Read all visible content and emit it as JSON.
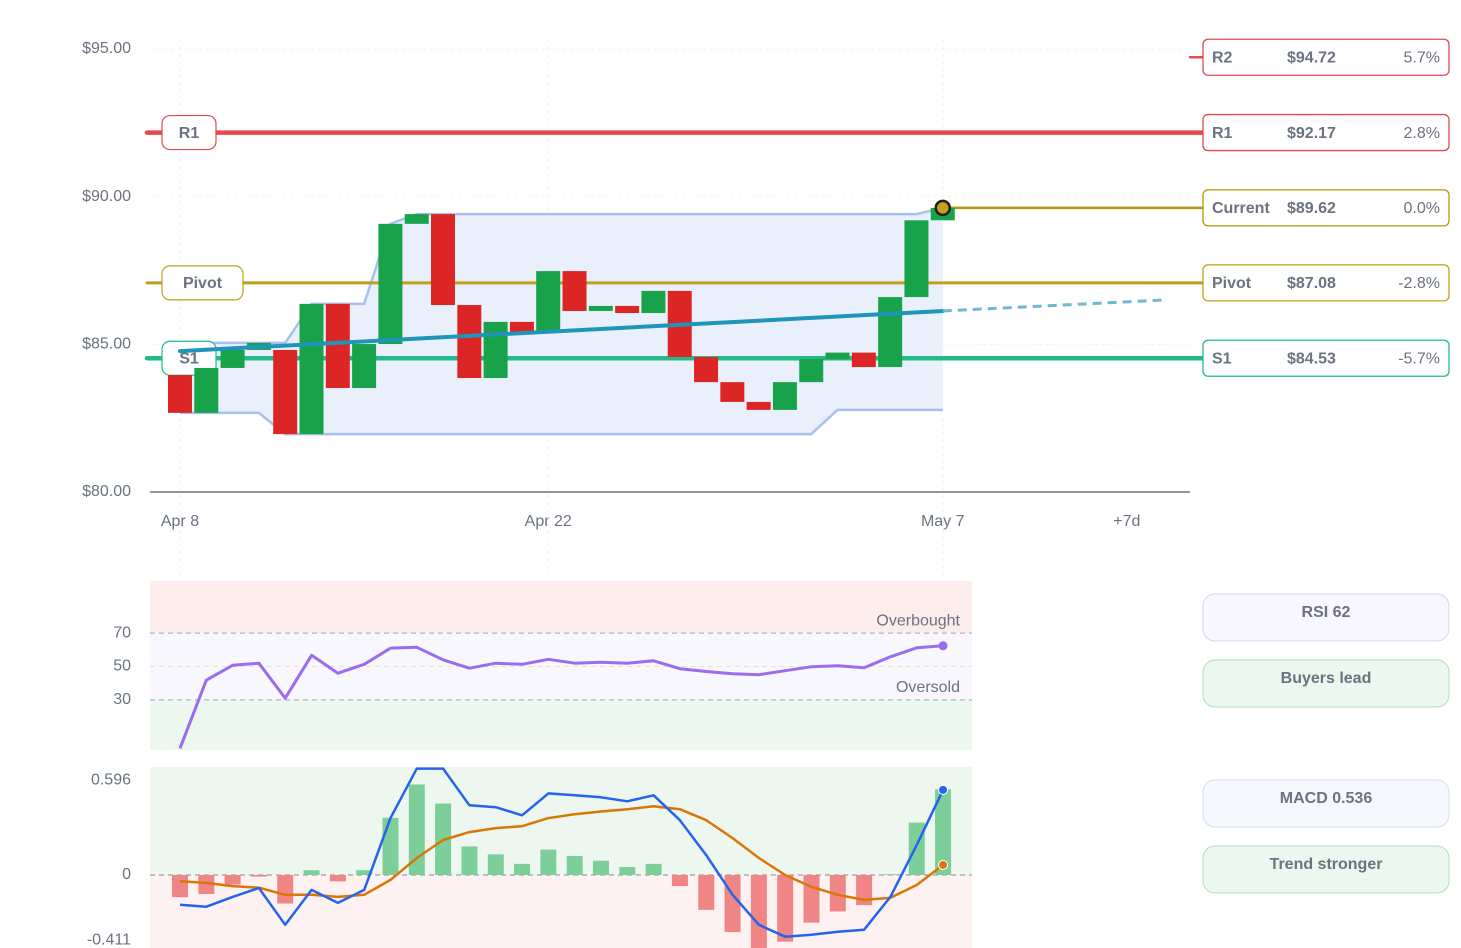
{
  "chart_data": [
    {
      "type": "candlestick",
      "x": [
        0,
        1,
        2,
        3,
        4,
        5,
        6,
        7,
        8,
        9,
        10,
        11,
        12,
        13,
        14,
        15,
        16,
        17,
        18,
        19,
        20,
        21,
        22,
        23,
        24,
        25,
        26,
        27,
        28,
        29
      ],
      "open": [
        83.96,
        82.68,
        84.2,
        84.81,
        84.81,
        81.96,
        86.37,
        83.52,
        85.01,
        89.08,
        89.41,
        86.33,
        83.86,
        85.76,
        85.42,
        87.48,
        86.13,
        86.3,
        86.06,
        86.81,
        84.57,
        83.72,
        83.05,
        82.78,
        83.72,
        84.5,
        84.72,
        84.23,
        86.6,
        89.2
      ],
      "close": [
        82.68,
        84.2,
        84.81,
        85.05,
        81.96,
        86.37,
        83.52,
        85.01,
        89.08,
        89.41,
        86.33,
        83.86,
        85.76,
        85.42,
        87.48,
        86.13,
        86.3,
        86.06,
        86.81,
        84.57,
        83.72,
        83.05,
        82.78,
        83.72,
        84.5,
        84.72,
        84.23,
        86.6,
        89.2,
        89.62
      ],
      "up_color": "#18a34a",
      "down_color": "#dc2626",
      "xlim": [
        -1.14,
        38.4
      ],
      "xticks": [
        {
          "value": 0,
          "label": "Apr 8"
        },
        {
          "value": 14,
          "label": "Apr 22"
        },
        {
          "value": 29,
          "label": "May 7"
        },
        {
          "value": 36,
          "label": "+7d"
        }
      ],
      "ylim": [
        80,
        95
      ],
      "yticks": [
        {
          "value": 80,
          "label": "$80.00"
        },
        {
          "value": 85,
          "label": "$85.00"
        },
        {
          "value": 90,
          "label": "$90.00"
        },
        {
          "value": 95,
          "label": "$95.00"
        }
      ],
      "grid": true,
      "channel": {
        "color": "#a8bff0",
        "fill": "#e9f0fc",
        "upper": [
          85.05,
          85.05,
          85.05,
          85.05,
          85.05,
          86.37,
          86.37,
          86.37,
          89.08,
          89.41,
          89.41,
          89.41,
          89.41,
          89.41,
          89.41,
          89.41,
          89.41,
          89.41,
          89.41,
          89.41,
          89.41,
          89.41,
          89.41,
          89.41,
          89.41,
          89.41,
          89.41,
          89.41,
          89.41,
          89.62
        ],
        "lower": [
          82.68,
          82.68,
          82.68,
          82.68,
          81.96,
          81.96,
          81.96,
          81.96,
          81.96,
          81.96,
          81.96,
          81.96,
          81.96,
          81.96,
          81.96,
          81.96,
          81.96,
          81.96,
          81.96,
          81.96,
          81.96,
          81.96,
          81.96,
          81.96,
          81.96,
          82.78,
          82.78,
          82.78,
          82.78,
          82.78
        ]
      },
      "trend": {
        "x": [
          0,
          29
        ],
        "values": [
          84.77,
          86.13
        ],
        "color": "#1f95b8"
      },
      "projection": {
        "x": [
          29,
          37.4
        ],
        "values": [
          86.13,
          86.5
        ],
        "color": "#6fb8d0"
      },
      "levels": [
        {
          "name": "R2",
          "value": 94.72,
          "value_label": "$94.72",
          "change": 5.7,
          "change_label": "5.7%",
          "color": "#e5484d",
          "line": "stub"
        },
        {
          "name": "R1",
          "value": 92.17,
          "value_label": "$92.17",
          "change": 2.8,
          "change_label": "2.8%",
          "color": "#e5484d",
          "line": "full"
        },
        {
          "name": "Current",
          "value": 89.62,
          "value_label": "$89.62",
          "change": 0.0,
          "change_label": "0.0%",
          "color": "#b8960c",
          "line": "from-last"
        },
        {
          "name": "Pivot",
          "value": 87.08,
          "value_label": "$87.08",
          "change": -2.8,
          "change_label": "-2.8%",
          "color": "#c0a01a",
          "line": "full"
        },
        {
          "name": "S1",
          "value": 84.53,
          "value_label": "$84.53",
          "change": -5.7,
          "change_label": "-5.7%",
          "color": "#22bb85",
          "line": "full"
        }
      ]
    },
    {
      "type": "line",
      "x": [
        0,
        1,
        2,
        3,
        4,
        5,
        6,
        7,
        8,
        9,
        10,
        11,
        12,
        13,
        14,
        15,
        16,
        17,
        18,
        19,
        20,
        21,
        22,
        23,
        24,
        25,
        26,
        27,
        28,
        29
      ],
      "values": [
        1,
        41.8,
        50.7,
        52,
        31,
        56.7,
        46,
        51.3,
        61,
        61.5,
        54,
        49,
        52,
        51.3,
        54.3,
        52,
        52.5,
        52,
        53.4,
        48.7,
        47,
        45.7,
        45.1,
        47.5,
        49.9,
        50.4,
        49.3,
        55.8,
        61.2,
        62.4
      ],
      "color": "#9b6cf0",
      "xlim": [
        -1.14,
        30.1
      ],
      "ylim": [
        0,
        100
      ],
      "yticks": [
        30,
        50,
        70
      ],
      "annotations": [
        "Oversold",
        "Overbought"
      ],
      "badge": "RSI 62",
      "note": "Buyers lead"
    },
    {
      "type": "macd",
      "x": [
        0,
        1,
        2,
        3,
        4,
        5,
        6,
        7,
        8,
        9,
        10,
        11,
        12,
        13,
        14,
        15,
        16,
        17,
        18,
        19,
        20,
        21,
        22,
        23,
        24,
        25,
        26,
        27,
        28,
        29
      ],
      "series": [
        {
          "values": [
            -0.188,
            -0.2,
            -0.138,
            -0.082,
            -0.314,
            -0.094,
            -0.176,
            -0.094,
            0.358,
            0.67,
            0.67,
            0.439,
            0.427,
            0.376,
            0.514,
            0.502,
            0.489,
            0.464,
            0.502,
            0.345,
            0.125,
            -0.125,
            -0.314,
            -0.389,
            -0.376,
            -0.358,
            -0.345,
            -0.138,
            0.188,
            0.536
          ],
          "color": "#2563eb"
        },
        {
          "values": [
            -0.04,
            -0.05,
            -0.07,
            -0.08,
            -0.125,
            -0.125,
            -0.138,
            -0.125,
            -0.031,
            0.107,
            0.22,
            0.27,
            0.295,
            0.307,
            0.358,
            0.383,
            0.4,
            0.414,
            0.433,
            0.414,
            0.345,
            0.232,
            0.107,
            0,
            -0.075,
            -0.125,
            -0.157,
            -0.144,
            -0.063,
            0.063
          ],
          "color": "#d97706"
        }
      ],
      "histogram": [
        -0.14,
        -0.12,
        -0.06,
        -0.01,
        -0.18,
        0.03,
        -0.04,
        0.03,
        0.36,
        0.57,
        0.45,
        0.18,
        0.13,
        0.07,
        0.16,
        0.12,
        0.09,
        0.05,
        0.07,
        -0.07,
        -0.22,
        -0.36,
        -0.46,
        -0.42,
        -0.3,
        -0.23,
        -0.19,
        0.005,
        0.33,
        0.54
      ],
      "up_color": "#7dcf9a",
      "down_color": "#ef8585",
      "xlim": [
        -1.14,
        30.1
      ],
      "ylim": [
        -0.46,
        0.68
      ],
      "yticks": [
        -0.411,
        0,
        0.596
      ],
      "badge": "MACD 0.536",
      "note": "Trend stronger"
    }
  ]
}
